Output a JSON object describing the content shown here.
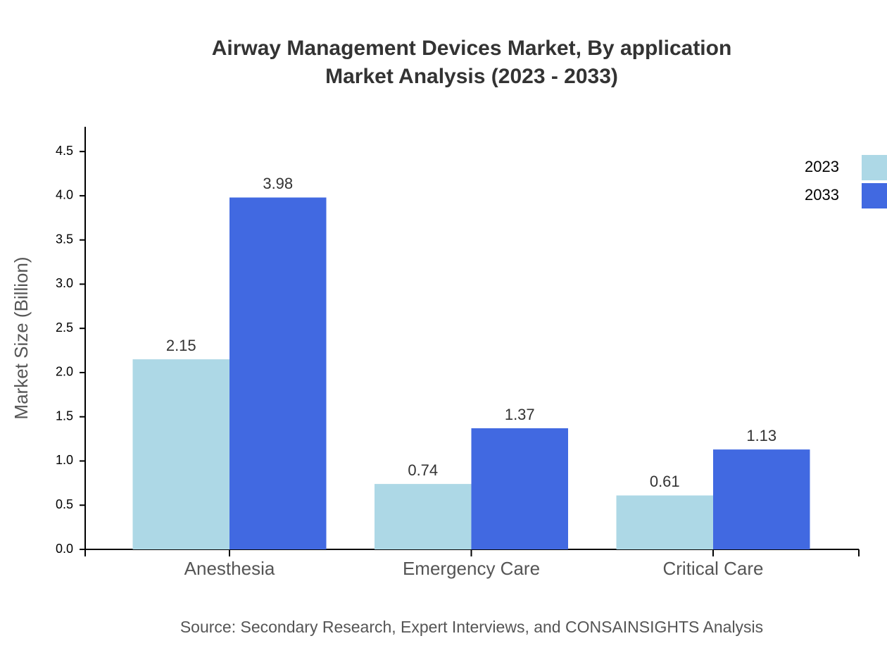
{
  "chart_data": {
    "type": "bar",
    "title": "Airway Management Devices Market, By application",
    "subtitle": "Market Analysis (2023 - 2033)",
    "y_label": "Market Size (Billion)",
    "source": "Source: Secondary Research, Expert Interviews, and CONSAINSIGHTS Analysis",
    "categories": [
      "Anesthesia",
      "Emergency Care",
      "Critical Care"
    ],
    "series": [
      {
        "name": "2023",
        "color": "#add8e6",
        "values": [
          2.15,
          0.74,
          0.61
        ]
      },
      {
        "name": "2033",
        "color": "#4169e1",
        "values": [
          3.98,
          1.37,
          1.13
        ]
      }
    ],
    "ylim": [
      0,
      4.78
    ],
    "yticks": [
      {
        "value": 0,
        "label": "0.0"
      },
      {
        "value": 0.5,
        "label": "0.5"
      },
      {
        "value": 1,
        "label": "1.0"
      },
      {
        "value": 1.5,
        "label": "1.5"
      },
      {
        "value": 2,
        "label": "2.0"
      },
      {
        "value": 2.5,
        "label": "2.5"
      },
      {
        "value": 3,
        "label": "3.0"
      },
      {
        "value": 3.5,
        "label": "3.5"
      },
      {
        "value": 4,
        "label": "4.0"
      },
      {
        "value": 4.5,
        "label": "4.5"
      }
    ],
    "legend": "top-right"
  }
}
